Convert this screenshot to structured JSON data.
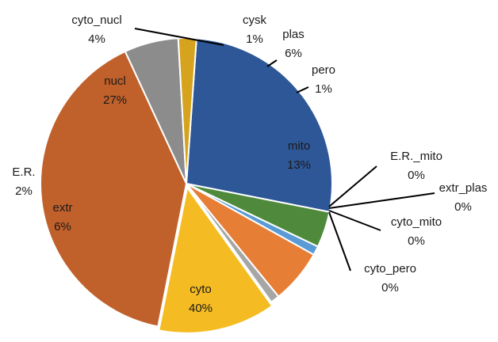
{
  "chart_data": {
    "type": "pie",
    "title": "",
    "slices": [
      {
        "name": "nucl",
        "value": 27,
        "label": "27%",
        "color": "#2e5797"
      },
      {
        "name": "cyto_nucl",
        "value": 4,
        "label": "4%",
        "color": "#4f8a3c"
      },
      {
        "name": "cysk",
        "value": 1,
        "label": "1%",
        "color": "#5b9bd5"
      },
      {
        "name": "plas",
        "value": 6,
        "label": "6%",
        "color": "#e67e36"
      },
      {
        "name": "pero",
        "value": 1,
        "label": "1%",
        "color": "#a6a6a6"
      },
      {
        "name": "mito",
        "value": 13,
        "label": "13%",
        "color": "#f4bc22"
      },
      {
        "name": "E.R._mito",
        "value": 0,
        "label": "0%",
        "color": "#2e5797"
      },
      {
        "name": "extr_plas",
        "value": 0,
        "label": "0%",
        "color": "#4f8a3c"
      },
      {
        "name": "cyto_mito",
        "value": 0,
        "label": "0%",
        "color": "#5b9bd5"
      },
      {
        "name": "cyto_pero",
        "value": 0,
        "label": "0%",
        "color": "#e67e36"
      },
      {
        "name": "cyto",
        "value": 40,
        "label": "40%",
        "color": "#c0612b"
      },
      {
        "name": "extr",
        "value": 6,
        "label": "6%",
        "color": "#8c8c8c"
      },
      {
        "name": "E.R.",
        "value": 2,
        "label": "2%",
        "color": "#d6a31f"
      }
    ]
  }
}
